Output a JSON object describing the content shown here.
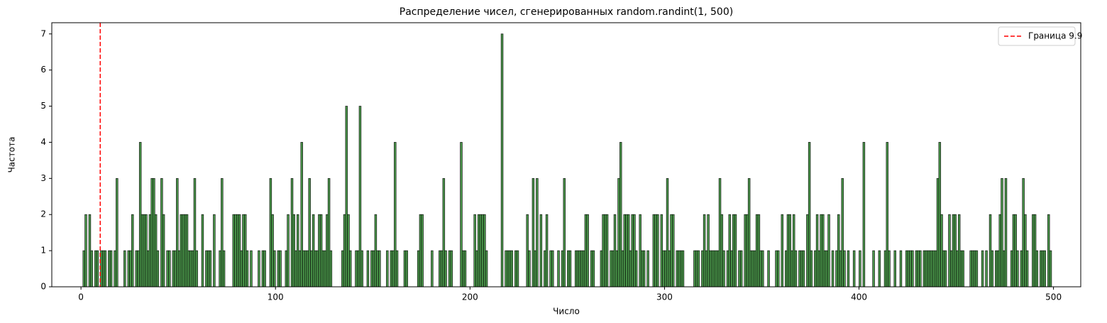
{
  "chart_data": {
    "type": "histogram",
    "title": "Распределение чисел, сгенерированных random.randint(1, 500)",
    "xlabel": "Число",
    "ylabel": "Частота",
    "bins": [
      1,
      2,
      3,
      4,
      5,
      6,
      7,
      8,
      9,
      10,
      11,
      12,
      13,
      14,
      15,
      16,
      17,
      18,
      19,
      20,
      21,
      22,
      23,
      24,
      25,
      26,
      27,
      28,
      29,
      30,
      31,
      32,
      33,
      34,
      35,
      36,
      37,
      38,
      39,
      40,
      41,
      42,
      43,
      44,
      45,
      46,
      47,
      48,
      49,
      50,
      51,
      52,
      53,
      54,
      55,
      56,
      57,
      58,
      59,
      60,
      61,
      62,
      63,
      64,
      65,
      66,
      67,
      68,
      69,
      70,
      71,
      72,
      73,
      74,
      75,
      76,
      77,
      78,
      79,
      80,
      81,
      82,
      83,
      84,
      85,
      86,
      87,
      88,
      89,
      90,
      91,
      92,
      93,
      94,
      95,
      96,
      97,
      98,
      99,
      100,
      101,
      102,
      103,
      104,
      105,
      106,
      107,
      108,
      109,
      110,
      111,
      112,
      113,
      114,
      115,
      116,
      117,
      118,
      119,
      120,
      121,
      122,
      123,
      124,
      125,
      126,
      127,
      128,
      129,
      130,
      131,
      132,
      133,
      134,
      135,
      136,
      137,
      138,
      139,
      140,
      141,
      142,
      143,
      144,
      145,
      146,
      147,
      148,
      149,
      150,
      151,
      152,
      153,
      154,
      155,
      156,
      157,
      158,
      159,
      160,
      161,
      162,
      163,
      164,
      165,
      166,
      167,
      168,
      169,
      170,
      171,
      172,
      173,
      174,
      175,
      176,
      177,
      178,
      179,
      180,
      181,
      182,
      183,
      184,
      185,
      186,
      187,
      188,
      189,
      190,
      191,
      192,
      193,
      194,
      195,
      196,
      197,
      198,
      199,
      200,
      201,
      202,
      203,
      204,
      205,
      206,
      207,
      208,
      209,
      210,
      211,
      212,
      213,
      214,
      215,
      216,
      217,
      218,
      219,
      220,
      221,
      222,
      223,
      224,
      225,
      226,
      227,
      228,
      229,
      230,
      231,
      232,
      233,
      234,
      235,
      236,
      237,
      238,
      239,
      240,
      241,
      242,
      243,
      244,
      245,
      246,
      247,
      248,
      249,
      250,
      251,
      252,
      253,
      254,
      255,
      256,
      257,
      258,
      259,
      260,
      261,
      262,
      263,
      264,
      265,
      266,
      267,
      268,
      269,
      270,
      271,
      272,
      273,
      274,
      275,
      276,
      277,
      278,
      279,
      280,
      281,
      282,
      283,
      284,
      285,
      286,
      287,
      288,
      289,
      290,
      291,
      292,
      293,
      294,
      295,
      296,
      297,
      298,
      299,
      300,
      301,
      302,
      303,
      304,
      305,
      306,
      307,
      308,
      309,
      310,
      311,
      312,
      313,
      314,
      315,
      316,
      317,
      318,
      319,
      320,
      321,
      322,
      323,
      324,
      325,
      326,
      327,
      328,
      329,
      330,
      331,
      332,
      333,
      334,
      335,
      336,
      337,
      338,
      339,
      340,
      341,
      342,
      343,
      344,
      345,
      346,
      347,
      348,
      349,
      350,
      351,
      352,
      353,
      354,
      355,
      356,
      357,
      358,
      359,
      360,
      361,
      362,
      363,
      364,
      365,
      366,
      367,
      368,
      369,
      370,
      371,
      372,
      373,
      374,
      375,
      376,
      377,
      378,
      379,
      380,
      381,
      382,
      383,
      384,
      385,
      386,
      387,
      388,
      389,
      390,
      391,
      392,
      393,
      394,
      395,
      396,
      397,
      398,
      399,
      400,
      401,
      402,
      403,
      404,
      405,
      406,
      407,
      408,
      409,
      410,
      411,
      412,
      413,
      414,
      415,
      416,
      417,
      418,
      419,
      420,
      421,
      422,
      423,
      424,
      425,
      426,
      427,
      428,
      429,
      430,
      431,
      432,
      433,
      434,
      435,
      436,
      437,
      438,
      439,
      440,
      441,
      442,
      443,
      444,
      445,
      446,
      447,
      448,
      449,
      450,
      451,
      452,
      453,
      454,
      455,
      456,
      457,
      458,
      459,
      460,
      461,
      462,
      463,
      464,
      465,
      466,
      467,
      468,
      469,
      470,
      471,
      472,
      473,
      474,
      475,
      476,
      477,
      478,
      479,
      480,
      481,
      482,
      483,
      484,
      485,
      486,
      487,
      488,
      489,
      490,
      491,
      492,
      493,
      494,
      495,
      496,
      497,
      498,
      499,
      500,
      501
    ],
    "values": [
      1,
      2,
      0,
      2,
      1,
      0,
      1,
      1,
      0,
      1,
      1,
      1,
      0,
      1,
      1,
      0,
      1,
      3,
      0,
      0,
      0,
      1,
      0,
      1,
      1,
      2,
      0,
      1,
      1,
      4,
      2,
      2,
      2,
      1,
      2,
      3,
      3,
      2,
      1,
      0,
      3,
      2,
      0,
      1,
      1,
      0,
      1,
      1,
      3,
      1,
      2,
      2,
      2,
      2,
      1,
      1,
      1,
      3,
      1,
      0,
      0,
      2,
      0,
      1,
      1,
      1,
      0,
      2,
      0,
      0,
      1,
      3,
      1,
      0,
      0,
      0,
      0,
      2,
      2,
      2,
      2,
      1,
      2,
      2,
      1,
      0,
      1,
      0,
      0,
      0,
      1,
      0,
      1,
      1,
      0,
      0,
      3,
      2,
      1,
      0,
      1,
      1,
      0,
      0,
      1,
      2,
      0,
      3,
      2,
      1,
      2,
      1,
      4,
      1,
      1,
      1,
      3,
      1,
      2,
      1,
      1,
      2,
      2,
      1,
      1,
      2,
      3,
      1,
      0,
      0,
      0,
      0,
      0,
      1,
      2,
      5,
      2,
      1,
      0,
      0,
      1,
      1,
      5,
      1,
      0,
      0,
      1,
      0,
      1,
      1,
      2,
      1,
      1,
      0,
      0,
      0,
      1,
      0,
      1,
      1,
      4,
      1,
      0,
      0,
      0,
      1,
      1,
      0,
      0,
      0,
      0,
      0,
      1,
      2,
      2,
      0,
      0,
      0,
      0,
      1,
      0,
      0,
      0,
      1,
      1,
      3,
      1,
      0,
      1,
      1,
      0,
      0,
      0,
      0,
      4,
      1,
      1,
      0,
      0,
      0,
      0,
      2,
      1,
      2,
      2,
      2,
      2,
      1,
      0,
      0,
      0,
      0,
      0,
      0,
      0,
      7,
      0,
      1,
      1,
      1,
      1,
      0,
      1,
      1,
      0,
      0,
      0,
      0,
      2,
      1,
      0,
      3,
      1,
      3,
      0,
      2,
      0,
      1,
      2,
      0,
      1,
      1,
      0,
      0,
      1,
      0,
      1,
      3,
      0,
      1,
      1,
      0,
      0,
      1,
      1,
      1,
      1,
      1,
      2,
      2,
      0,
      1,
      1,
      0,
      0,
      0,
      1,
      2,
      2,
      2,
      0,
      1,
      1,
      2,
      1,
      3,
      4,
      1,
      2,
      2,
      2,
      1,
      2,
      2,
      1,
      0,
      2,
      1,
      1,
      0,
      1,
      0,
      0,
      2,
      2,
      2,
      0,
      2,
      1,
      1,
      3,
      1,
      2,
      2,
      0,
      1,
      1,
      1,
      1,
      0,
      0,
      0,
      0,
      0,
      1,
      1,
      1,
      0,
      1,
      2,
      1,
      2,
      1,
      1,
      1,
      1,
      1,
      3,
      2,
      1,
      0,
      1,
      2,
      1,
      2,
      2,
      0,
      1,
      1,
      0,
      2,
      2,
      3,
      1,
      1,
      1,
      2,
      2,
      1,
      1,
      0,
      0,
      1,
      0,
      0,
      0,
      1,
      1,
      0,
      2,
      0,
      1,
      2,
      2,
      1,
      2,
      1,
      0,
      1,
      1,
      1,
      0,
      2,
      4,
      1,
      0,
      1,
      2,
      1,
      2,
      2,
      1,
      1,
      2,
      0,
      1,
      0,
      1,
      2,
      1,
      3,
      1,
      0,
      1,
      0,
      0,
      1,
      0,
      0,
      1,
      0,
      4,
      0,
      0,
      0,
      0,
      1,
      0,
      0,
      1,
      0,
      0,
      1,
      4,
      1,
      0,
      0,
      1,
      0,
      0,
      1,
      0,
      0,
      1,
      1,
      1,
      1,
      0,
      1,
      1,
      1,
      0,
      1,
      1,
      1,
      1,
      1,
      1,
      1,
      3,
      4,
      2,
      1,
      1,
      0,
      2,
      1,
      2,
      2,
      1,
      2,
      1,
      1,
      0,
      0,
      0,
      1,
      1,
      1,
      1,
      0,
      0,
      1,
      0,
      1,
      0,
      2,
      1,
      0,
      1,
      1,
      2,
      3,
      1,
      3,
      0,
      0,
      1,
      2,
      2,
      1,
      0,
      1,
      3,
      2,
      1,
      0,
      0,
      2,
      2,
      1,
      0,
      1,
      1,
      1,
      0,
      2,
      1,
      0,
      0
    ],
    "color": "#4c9a4c",
    "xlim": [
      -15,
      514
    ],
    "xticks": [
      0,
      100,
      200,
      300,
      400,
      500
    ],
    "ylim": [
      0,
      7.31
    ],
    "yticks": [
      0,
      1,
      2,
      3,
      4,
      5,
      6,
      7
    ],
    "vline": {
      "x": 9.9,
      "color": "red",
      "label": "Граница 9.9"
    },
    "legend": "upper right"
  }
}
